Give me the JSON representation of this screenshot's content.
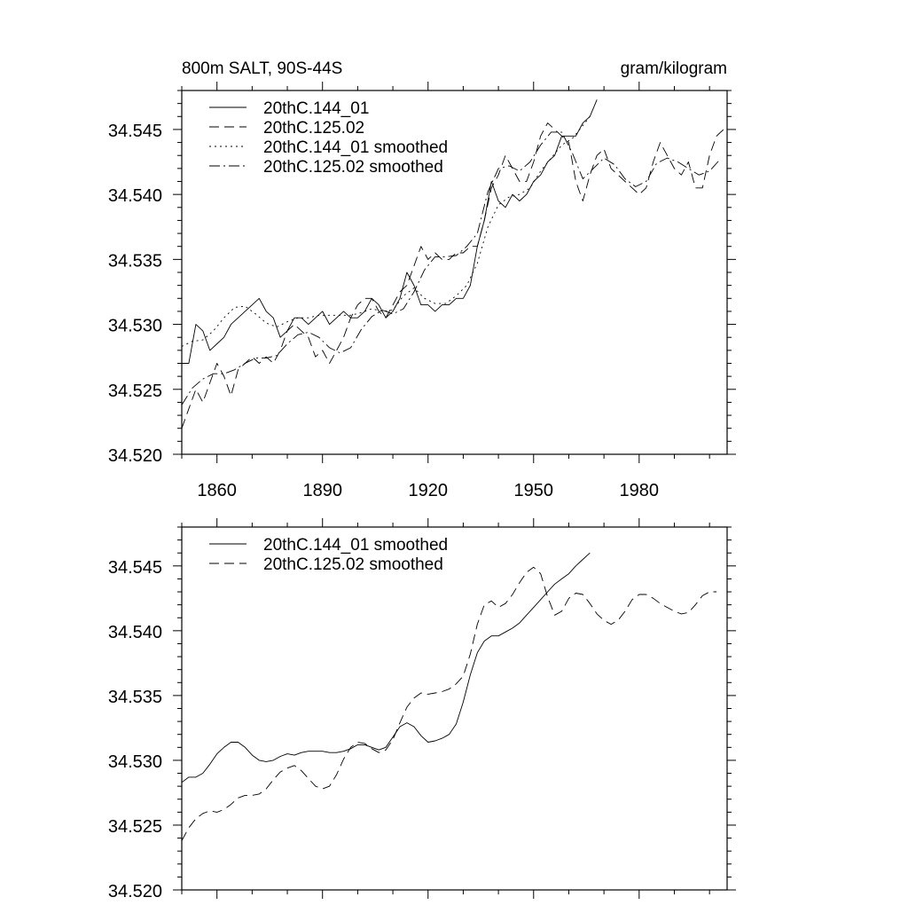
{
  "chart_data": [
    {
      "type": "line",
      "title": "800m SALT, 90S-44S",
      "units": "gram/kilogram",
      "xlabel": "",
      "ylabel": "",
      "xlim": [
        1850,
        2005
      ],
      "ylim": [
        34.52,
        34.548
      ],
      "xticks": [
        "1860",
        "1890",
        "1920",
        "1950",
        "1980"
      ],
      "yticks": [
        "34.520",
        "34.525",
        "34.530",
        "34.535",
        "34.540",
        "34.545"
      ],
      "legend_position": "top-left",
      "series": [
        {
          "name": "20thC.144_01",
          "style": "solid",
          "x": [
            1850,
            1852,
            1854,
            1856,
            1858,
            1860,
            1862,
            1864,
            1866,
            1868,
            1870,
            1872,
            1874,
            1876,
            1878,
            1880,
            1882,
            1884,
            1886,
            1888,
            1890,
            1892,
            1894,
            1896,
            1898,
            1900,
            1902,
            1904,
            1906,
            1908,
            1910,
            1912,
            1914,
            1916,
            1918,
            1920,
            1922,
            1924,
            1926,
            1928,
            1930,
            1932,
            1934,
            1936,
            1938,
            1940,
            1942,
            1944,
            1946,
            1948,
            1950,
            1952,
            1954,
            1956,
            1958,
            1960,
            1962,
            1964,
            1966,
            1968
          ],
          "values": [
            34.527,
            34.527,
            34.53,
            34.5295,
            34.528,
            34.5285,
            34.529,
            34.53,
            34.5305,
            34.531,
            34.5315,
            34.532,
            34.531,
            34.5305,
            34.529,
            34.5295,
            34.5305,
            34.5305,
            34.53,
            34.5305,
            34.531,
            34.53,
            34.5305,
            34.531,
            34.5305,
            34.5305,
            34.531,
            34.532,
            34.5315,
            34.5305,
            34.531,
            34.532,
            34.534,
            34.533,
            34.5315,
            34.5315,
            34.531,
            34.5315,
            34.5315,
            34.532,
            34.532,
            34.533,
            34.536,
            34.538,
            34.541,
            34.5395,
            34.539,
            34.54,
            34.5395,
            34.54,
            34.541,
            34.5415,
            34.5425,
            34.543,
            34.5445,
            34.5445,
            34.5445,
            34.5455,
            34.546,
            34.5473
          ]
        },
        {
          "name": "20thC.125.02",
          "style": "dashed",
          "x": [
            1850,
            1852,
            1854,
            1856,
            1858,
            1860,
            1862,
            1864,
            1866,
            1868,
            1870,
            1872,
            1874,
            1876,
            1878,
            1880,
            1882,
            1884,
            1886,
            1888,
            1890,
            1892,
            1894,
            1896,
            1898,
            1900,
            1902,
            1904,
            1906,
            1908,
            1910,
            1912,
            1914,
            1916,
            1918,
            1920,
            1922,
            1924,
            1926,
            1928,
            1930,
            1932,
            1934,
            1936,
            1938,
            1940,
            1942,
            1944,
            1946,
            1948,
            1950,
            1952,
            1954,
            1956,
            1958,
            1960,
            1962,
            1964,
            1966,
            1968,
            1970,
            1972,
            1974,
            1976,
            1978,
            1980,
            1982,
            1984,
            1986,
            1988,
            1990,
            1992,
            1994,
            1996,
            1998,
            2000,
            2002,
            2004
          ],
          "values": [
            34.522,
            34.5235,
            34.525,
            34.524,
            34.5255,
            34.527,
            34.526,
            34.5245,
            34.5265,
            34.527,
            34.5275,
            34.527,
            34.5275,
            34.527,
            34.528,
            34.5295,
            34.53,
            34.5295,
            34.529,
            34.5275,
            34.528,
            34.527,
            34.528,
            34.529,
            34.5305,
            34.5315,
            34.532,
            34.532,
            34.531,
            34.5305,
            34.5315,
            34.5325,
            34.533,
            34.5345,
            34.536,
            34.535,
            34.5355,
            34.535,
            34.535,
            34.5355,
            34.5355,
            34.536,
            34.536,
            34.538,
            34.5405,
            34.5415,
            34.543,
            34.542,
            34.541,
            34.541,
            34.5425,
            34.5445,
            34.5455,
            34.545,
            34.5445,
            34.544,
            34.541,
            34.5395,
            34.5415,
            34.543,
            34.5435,
            34.542,
            34.5415,
            34.541,
            34.5405,
            34.54,
            34.5405,
            34.5425,
            34.544,
            34.543,
            34.542,
            34.5415,
            34.5425,
            34.5405,
            34.5405,
            34.543,
            34.5445,
            34.545
          ]
        },
        {
          "name": "20thC.144_01 smoothed",
          "style": "dotted",
          "x": [
            1850,
            1853,
            1856,
            1859,
            1862,
            1865,
            1868,
            1871,
            1874,
            1877,
            1880,
            1883,
            1886,
            1889,
            1892,
            1895,
            1898,
            1901,
            1904,
            1907,
            1910,
            1913,
            1916,
            1919,
            1922,
            1925,
            1928,
            1931,
            1934,
            1937,
            1940,
            1943,
            1946,
            1949,
            1952,
            1955,
            1958,
            1961,
            1964,
            1966
          ],
          "values": [
            34.5283,
            34.5287,
            34.5288,
            34.5295,
            34.5305,
            34.5313,
            34.5314,
            34.5308,
            34.5301,
            34.5298,
            34.5302,
            34.5305,
            34.5305,
            34.5307,
            34.5307,
            34.5307,
            34.5307,
            34.5309,
            34.5312,
            34.531,
            34.5311,
            34.5322,
            34.5328,
            34.532,
            34.5316,
            34.5316,
            34.5322,
            34.533,
            34.5347,
            34.5375,
            34.5392,
            34.5398,
            34.54,
            34.5405,
            34.5418,
            34.5428,
            34.5438,
            34.5443,
            34.5453,
            34.546
          ]
        },
        {
          "name": "20thC.125.02 smoothed",
          "style": "dashdot",
          "x": [
            1850,
            1853,
            1856,
            1859,
            1862,
            1865,
            1868,
            1871,
            1874,
            1877,
            1880,
            1883,
            1886,
            1889,
            1892,
            1895,
            1898,
            1901,
            1904,
            1907,
            1910,
            1913,
            1916,
            1919,
            1922,
            1925,
            1928,
            1931,
            1934,
            1937,
            1940,
            1943,
            1946,
            1949,
            1952,
            1955,
            1958,
            1961,
            1964,
            1967,
            1970,
            1973,
            1976,
            1979,
            1982,
            1985,
            1988,
            1991,
            1994,
            1997,
            2000,
            2003
          ],
          "values": [
            34.5238,
            34.5251,
            34.5258,
            34.5262,
            34.5262,
            34.5265,
            34.527,
            34.5274,
            34.5274,
            34.5276,
            34.5285,
            34.5292,
            34.5294,
            34.529,
            34.5282,
            34.5278,
            34.5282,
            34.5296,
            34.5306,
            34.5311,
            34.5308,
            34.5312,
            34.5325,
            34.5342,
            34.5352,
            34.5352,
            34.5353,
            34.536,
            34.537,
            34.5402,
            34.542,
            34.5422,
            34.5418,
            34.5425,
            34.5438,
            34.5448,
            34.5448,
            34.5432,
            34.5412,
            34.542,
            34.5428,
            34.5423,
            34.5412,
            34.5406,
            34.541,
            34.5424,
            34.5428,
            34.5425,
            34.542,
            34.5415,
            34.5418,
            34.5427
          ]
        }
      ]
    },
    {
      "type": "line",
      "title": "",
      "xlabel": "",
      "ylabel": "",
      "xlim": [
        1850,
        2005
      ],
      "ylim": [
        34.52,
        34.548
      ],
      "yticks": [
        "34.520",
        "34.525",
        "34.530",
        "34.535",
        "34.540",
        "34.545"
      ],
      "legend_position": "top-left",
      "series": [
        {
          "name": "20thC.144_01 smoothed",
          "style": "solid",
          "x": [
            1850,
            1852,
            1854,
            1856,
            1858,
            1860,
            1862,
            1864,
            1866,
            1868,
            1870,
            1872,
            1874,
            1876,
            1878,
            1880,
            1882,
            1884,
            1886,
            1888,
            1890,
            1892,
            1894,
            1896,
            1898,
            1900,
            1902,
            1904,
            1906,
            1908,
            1910,
            1912,
            1914,
            1916,
            1918,
            1920,
            1922,
            1924,
            1926,
            1928,
            1930,
            1932,
            1934,
            1936,
            1938,
            1940,
            1942,
            1944,
            1946,
            1948,
            1950,
            1952,
            1954,
            1956,
            1958,
            1960,
            1962,
            1964,
            1966
          ],
          "values": [
            34.5283,
            34.5287,
            34.5287,
            34.529,
            34.5297,
            34.5305,
            34.531,
            34.5314,
            34.5314,
            34.531,
            34.5304,
            34.53,
            34.5299,
            34.53,
            34.5303,
            34.5305,
            34.5304,
            34.5306,
            34.5307,
            34.5307,
            34.5307,
            34.5306,
            34.5306,
            34.5307,
            34.5309,
            34.5312,
            34.5312,
            34.531,
            34.5308,
            34.531,
            34.5318,
            34.5326,
            34.5329,
            34.5326,
            34.5319,
            34.5314,
            34.5315,
            34.5317,
            34.532,
            34.5328,
            34.5345,
            34.5366,
            34.5383,
            34.5392,
            34.5396,
            34.5396,
            34.5399,
            34.5402,
            34.5406,
            34.5412,
            34.5418,
            34.5424,
            34.543,
            34.5436,
            34.544,
            34.5444,
            34.545,
            34.5455,
            34.546
          ]
        },
        {
          "name": "20thC.125.02 smoothed",
          "style": "dashed",
          "x": [
            1850,
            1852,
            1854,
            1856,
            1858,
            1860,
            1862,
            1864,
            1866,
            1868,
            1870,
            1872,
            1874,
            1876,
            1878,
            1880,
            1882,
            1884,
            1886,
            1888,
            1890,
            1892,
            1894,
            1896,
            1898,
            1900,
            1902,
            1904,
            1906,
            1908,
            1910,
            1912,
            1914,
            1916,
            1918,
            1920,
            1922,
            1924,
            1926,
            1928,
            1930,
            1932,
            1934,
            1936,
            1938,
            1940,
            1942,
            1944,
            1946,
            1948,
            1950,
            1952,
            1954,
            1956,
            1958,
            1960,
            1962,
            1964,
            1966,
            1968,
            1970,
            1972,
            1974,
            1976,
            1978,
            1980,
            1982,
            1984,
            1986,
            1988,
            1990,
            1992,
            1994,
            1996,
            1998,
            2000,
            2002
          ],
          "values": [
            34.5238,
            34.5248,
            34.5255,
            34.5259,
            34.5261,
            34.526,
            34.5262,
            34.5266,
            34.5271,
            34.5273,
            34.5273,
            34.5274,
            34.5278,
            34.5285,
            34.5291,
            34.5294,
            34.5296,
            34.5292,
            34.5286,
            34.528,
            34.5278,
            34.528,
            34.5289,
            34.5301,
            34.531,
            34.5314,
            34.5313,
            34.5309,
            34.5306,
            34.5308,
            34.5316,
            34.5329,
            34.5341,
            34.5348,
            34.5352,
            34.5351,
            34.5352,
            34.5353,
            34.5355,
            34.5359,
            34.5365,
            34.5382,
            34.5405,
            34.542,
            34.5423,
            34.5418,
            34.5421,
            34.5428,
            34.5437,
            34.5445,
            34.5449,
            34.5444,
            34.5426,
            34.5412,
            34.5415,
            34.5425,
            34.5429,
            34.5428,
            34.5421,
            34.5413,
            34.5408,
            34.5405,
            34.5408,
            34.5415,
            34.5424,
            34.5428,
            34.5428,
            34.5425,
            34.5421,
            34.5418,
            34.5415,
            34.5413,
            34.5414,
            34.542,
            34.5427,
            34.543,
            34.543
          ]
        }
      ]
    }
  ]
}
